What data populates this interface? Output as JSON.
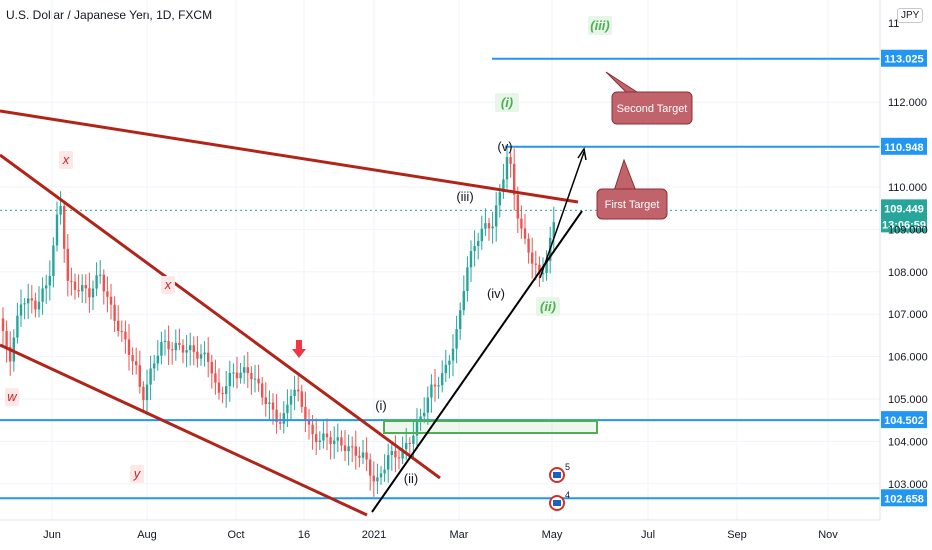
{
  "header": {
    "title": "U.S. Dollar / Japanese Yen, 1D, FXCM",
    "currency_badge": "JPY"
  },
  "chart_data": {
    "type": "candlestick",
    "symbol": "U.S. Dollar / Japanese Yen, 1D, FXCM",
    "ylim": [
      102.2,
      111.8
    ],
    "y_ticks": [
      {
        "label": "103.000",
        "value": 103.0
      },
      {
        "label": "104.000",
        "value": 104.0
      },
      {
        "label": "105.000",
        "value": 105.0
      },
      {
        "label": "106.000",
        "value": 106.0
      },
      {
        "label": "107.000",
        "value": 107.0
      },
      {
        "label": "108.000",
        "value": 108.0
      },
      {
        "label": "109.000",
        "value": 109.0
      },
      {
        "label": "110.000",
        "value": 110.0
      },
      {
        "label": "112.000",
        "value": 112.0
      }
    ],
    "x_ticks": [
      "Jun",
      "Aug",
      "Oct",
      "16",
      "2021",
      "Mar",
      "May",
      "Jul",
      "Sep",
      "Nov"
    ],
    "price_labels": [
      {
        "label": "113.025",
        "value": 113.025,
        "color": "#2196f3"
      },
      {
        "label": "110.948",
        "value": 110.948,
        "color": "#2196f3"
      },
      {
        "label": "109.449",
        "value": 109.449,
        "color": "#26a69a"
      },
      {
        "label": "13:06:59",
        "value": 109.449,
        "color": "#26a69a"
      },
      {
        "label": "104.502",
        "value": 104.502,
        "color": "#2196f3"
      },
      {
        "label": "102.658",
        "value": 102.658,
        "color": "#2196f3"
      }
    ],
    "horizontal_lines": [
      113.025,
      110.948,
      104.502,
      102.658
    ],
    "current_price": 109.449,
    "wave_labels": {
      "black": [
        "(i)",
        "(ii)",
        "(iii)",
        "(iv)",
        "(v)"
      ],
      "green": [
        "(iii)",
        "(i)",
        "(ii)"
      ],
      "red": [
        "x",
        "x",
        "w",
        "y"
      ]
    },
    "annotations": [
      "Second Target",
      "First Target"
    ],
    "event_markers": [
      "5",
      "4"
    ],
    "colors": {
      "up": "#26a69a",
      "down": "#ef5350",
      "trend": "#b22318",
      "level": "#2196f3"
    }
  }
}
